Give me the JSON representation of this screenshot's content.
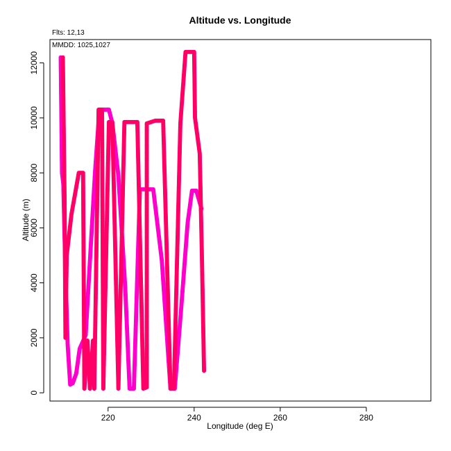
{
  "chart_data": {
    "type": "line",
    "title": "Altitude vs. Longitude",
    "xlabel": "Longitude (deg E)",
    "ylabel": "Altitude (m)",
    "xlim": [
      206.5,
      295
    ],
    "ylim": [
      -300,
      12850
    ],
    "x_ticks": [
      220,
      240,
      260,
      280
    ],
    "y_ticks": [
      0,
      2000,
      4000,
      6000,
      8000,
      10000,
      12000
    ],
    "grid": false,
    "annotations": {
      "flights": "Flts: 12,13",
      "dates": "MMDD: 1025,1027"
    },
    "series": [
      {
        "color": "#ff00cc",
        "points": [
          [
            209.0,
            12200
          ],
          [
            209.3,
            8000
          ],
          [
            209.6,
            7600
          ],
          [
            210.0,
            5000
          ],
          [
            210.6,
            1800
          ],
          [
            211.2,
            300
          ],
          [
            211.8,
            350
          ],
          [
            212.6,
            700
          ],
          [
            213.4,
            1600
          ],
          [
            214.8,
            2100
          ],
          [
            217.0,
            8100
          ],
          [
            218.0,
            10300
          ],
          [
            219.0,
            10300
          ],
          [
            220.2,
            10300
          ],
          [
            221.0,
            9800
          ],
          [
            222.4,
            7900
          ],
          [
            224.0,
            3800
          ],
          [
            225.0,
            150
          ],
          [
            226.0,
            150
          ],
          [
            227.4,
            7400
          ],
          [
            230.0,
            7400
          ],
          [
            230.5,
            7400
          ],
          [
            232.5,
            4800
          ],
          [
            234.5,
            150
          ],
          [
            235.5,
            150
          ],
          [
            237.0,
            3100
          ],
          [
            238.5,
            6200
          ],
          [
            239.5,
            7350
          ],
          [
            240.5,
            7350
          ],
          [
            241.7,
            6700
          ]
        ]
      },
      {
        "color": "#ff0066",
        "points": [
          [
            209.5,
            12200
          ],
          [
            209.9,
            7000
          ],
          [
            210.1,
            2000
          ],
          [
            210.4,
            5000
          ],
          [
            211.5,
            6500
          ],
          [
            213.2,
            8000
          ],
          [
            214.2,
            8000
          ],
          [
            214.5,
            150
          ],
          [
            215.2,
            1900
          ],
          [
            215.8,
            150
          ],
          [
            216.5,
            1900
          ],
          [
            216.8,
            150
          ],
          [
            217.8,
            10300
          ],
          [
            218.6,
            10300
          ],
          [
            218.9,
            150
          ],
          [
            220.2,
            9850
          ],
          [
            221.0,
            9850
          ],
          [
            222.4,
            150
          ],
          [
            223.8,
            9850
          ],
          [
            226.8,
            9850
          ],
          [
            228.2,
            150
          ],
          [
            229.0,
            200
          ],
          [
            229.0,
            9800
          ],
          [
            231.0,
            9900
          ],
          [
            232.8,
            9900
          ],
          [
            234.5,
            150
          ],
          [
            235.3,
            150
          ],
          [
            236.8,
            9800
          ],
          [
            238.0,
            12400
          ],
          [
            240.0,
            12400
          ],
          [
            240.2,
            10000
          ],
          [
            241.3,
            8700
          ],
          [
            241.8,
            5000
          ],
          [
            242.3,
            800
          ]
        ]
      }
    ]
  }
}
